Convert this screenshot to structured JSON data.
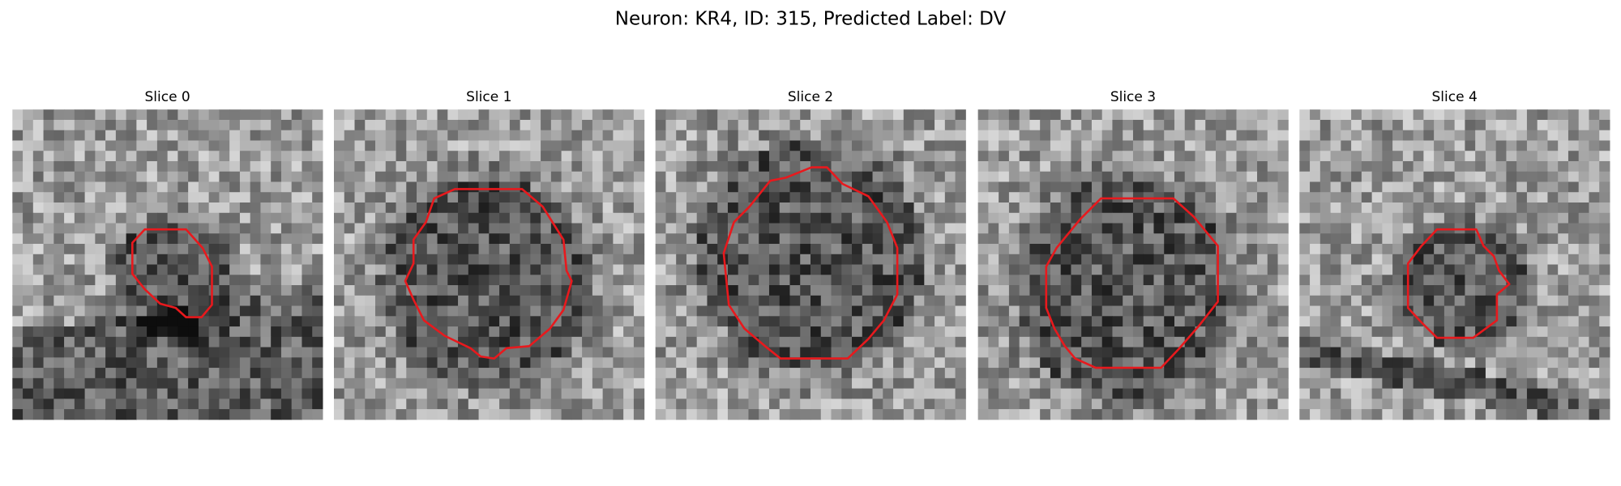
{
  "title": "Neuron: KR4, ID: 315, Predicted Label: DV",
  "panels": [
    {
      "title": "Slice 0"
    },
    {
      "title": "Slice 1"
    },
    {
      "title": "Slice 2"
    },
    {
      "title": "Slice 3"
    },
    {
      "title": "Slice 4"
    }
  ]
}
